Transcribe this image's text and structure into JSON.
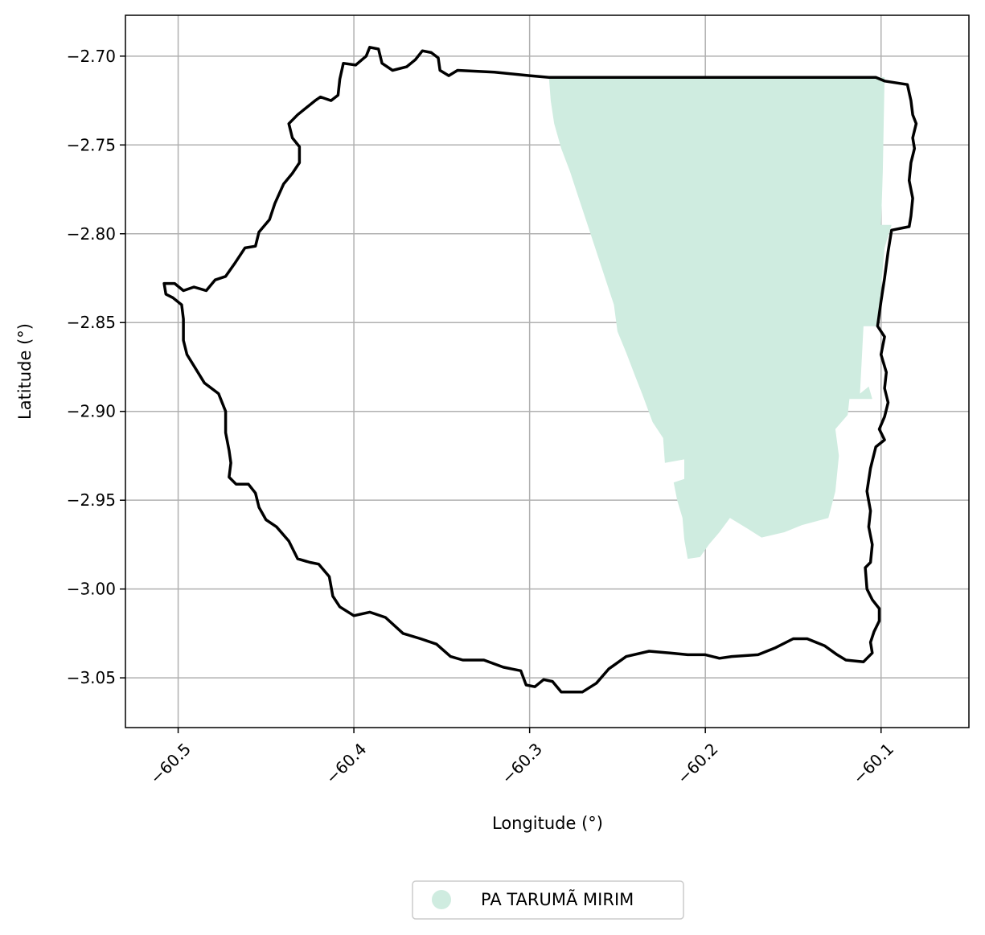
{
  "chart_data": {
    "type": "map",
    "xlabel": "Longitude (°)",
    "ylabel": "Latitude (°)",
    "xlim": [
      -60.53,
      -60.05
    ],
    "ylim": [
      -3.078,
      -2.677
    ],
    "x_ticks": [
      -60.5,
      -60.4,
      -60.3,
      -60.2,
      -60.1
    ],
    "y_ticks": [
      -2.7,
      -2.75,
      -2.8,
      -2.85,
      -2.9,
      -2.95,
      -3.0,
      -3.05
    ],
    "x_tick_labels": [
      "−60.5",
      "−60.4",
      "−60.3",
      "−60.2",
      "−60.1"
    ],
    "y_tick_labels": [
      "−2.70",
      "−2.75",
      "−2.80",
      "−2.85",
      "−2.90",
      "−2.95",
      "−3.00",
      "−3.05"
    ],
    "grid": true,
    "legend": {
      "placement": "below-center",
      "entries": [
        {
          "label": "PA TARUMÃ MIRIM",
          "color": "#cfece0"
        }
      ]
    },
    "colors": {
      "boundary": "#000000",
      "settlement_fill": "#cfece0",
      "grid": "#b0b0b0"
    },
    "boundary": [
      [
        -60.508,
        -2.828
      ],
      [
        -60.502,
        -2.828
      ],
      [
        -60.497,
        -2.832
      ],
      [
        -60.491,
        -2.83
      ],
      [
        -60.484,
        -2.832
      ],
      [
        -60.479,
        -2.826
      ],
      [
        -60.473,
        -2.824
      ],
      [
        -60.468,
        -2.817
      ],
      [
        -60.462,
        -2.808
      ],
      [
        -60.456,
        -2.807
      ],
      [
        -60.454,
        -2.799
      ],
      [
        -60.448,
        -2.792
      ],
      [
        -60.445,
        -2.783
      ],
      [
        -60.44,
        -2.772
      ],
      [
        -60.435,
        -2.766
      ],
      [
        -60.431,
        -2.76
      ],
      [
        -60.431,
        -2.751
      ],
      [
        -60.435,
        -2.746
      ],
      [
        -60.437,
        -2.738
      ],
      [
        -60.432,
        -2.733
      ],
      [
        -60.427,
        -2.729
      ],
      [
        -60.422,
        -2.725
      ],
      [
        -60.419,
        -2.723
      ],
      [
        -60.413,
        -2.725
      ],
      [
        -60.409,
        -2.722
      ],
      [
        -60.408,
        -2.713
      ],
      [
        -60.406,
        -2.704
      ],
      [
        -60.399,
        -2.705
      ],
      [
        -60.393,
        -2.7
      ],
      [
        -60.391,
        -2.695
      ],
      [
        -60.386,
        -2.696
      ],
      [
        -60.384,
        -2.704
      ],
      [
        -60.378,
        -2.708
      ],
      [
        -60.37,
        -2.706
      ],
      [
        -60.365,
        -2.702
      ],
      [
        -60.361,
        -2.697
      ],
      [
        -60.356,
        -2.698
      ],
      [
        -60.352,
        -2.701
      ],
      [
        -60.351,
        -2.708
      ],
      [
        -60.346,
        -2.711
      ],
      [
        -60.341,
        -2.708
      ],
      [
        -60.32,
        -2.709
      ],
      [
        -60.3,
        -2.711
      ],
      [
        -60.289,
        -2.712
      ],
      [
        -60.2,
        -2.712
      ],
      [
        -60.15,
        -2.712
      ],
      [
        -60.103,
        -2.712
      ],
      [
        -60.098,
        -2.714
      ],
      [
        -60.085,
        -2.716
      ],
      [
        -60.083,
        -2.725
      ],
      [
        -60.082,
        -2.733
      ],
      [
        -60.08,
        -2.738
      ],
      [
        -60.082,
        -2.746
      ],
      [
        -60.081,
        -2.752
      ],
      [
        -60.083,
        -2.76
      ],
      [
        -60.084,
        -2.77
      ],
      [
        -60.082,
        -2.78
      ],
      [
        -60.083,
        -2.79
      ],
      [
        -60.084,
        -2.796
      ],
      [
        -60.094,
        -2.798
      ],
      [
        -60.096,
        -2.81
      ],
      [
        -60.098,
        -2.825
      ],
      [
        -60.1,
        -2.838
      ],
      [
        -60.102,
        -2.852
      ],
      [
        -60.098,
        -2.858
      ],
      [
        -60.1,
        -2.868
      ],
      [
        -60.097,
        -2.878
      ],
      [
        -60.098,
        -2.887
      ],
      [
        -60.096,
        -2.895
      ],
      [
        -60.098,
        -2.903
      ],
      [
        -60.101,
        -2.91
      ],
      [
        -60.098,
        -2.916
      ],
      [
        -60.103,
        -2.92
      ],
      [
        -60.106,
        -2.932
      ],
      [
        -60.108,
        -2.945
      ],
      [
        -60.106,
        -2.956
      ],
      [
        -60.107,
        -2.965
      ],
      [
        -60.105,
        -2.975
      ],
      [
        -60.106,
        -2.985
      ],
      [
        -60.109,
        -2.988
      ],
      [
        -60.108,
        -3.0
      ],
      [
        -60.105,
        -3.006
      ],
      [
        -60.101,
        -3.011
      ],
      [
        -60.101,
        -3.018
      ],
      [
        -60.104,
        -3.024
      ],
      [
        -60.106,
        -3.03
      ],
      [
        -60.105,
        -3.036
      ],
      [
        -60.11,
        -3.041
      ],
      [
        -60.12,
        -3.04
      ],
      [
        -60.125,
        -3.037
      ],
      [
        -60.132,
        -3.032
      ],
      [
        -60.142,
        -3.028
      ],
      [
        -60.15,
        -3.028
      ],
      [
        -60.16,
        -3.033
      ],
      [
        -60.17,
        -3.037
      ],
      [
        -60.185,
        -3.038
      ],
      [
        -60.192,
        -3.039
      ],
      [
        -60.2,
        -3.037
      ],
      [
        -60.21,
        -3.037
      ],
      [
        -60.22,
        -3.036
      ],
      [
        -60.232,
        -3.035
      ],
      [
        -60.245,
        -3.038
      ],
      [
        -60.255,
        -3.045
      ],
      [
        -60.262,
        -3.053
      ],
      [
        -60.27,
        -3.058
      ],
      [
        -60.282,
        -3.058
      ],
      [
        -60.287,
        -3.052
      ],
      [
        -60.292,
        -3.051
      ],
      [
        -60.297,
        -3.055
      ],
      [
        -60.302,
        -3.054
      ],
      [
        -60.305,
        -3.046
      ],
      [
        -60.315,
        -3.044
      ],
      [
        -60.326,
        -3.04
      ],
      [
        -60.338,
        -3.04
      ],
      [
        -60.345,
        -3.038
      ],
      [
        -60.353,
        -3.031
      ],
      [
        -60.362,
        -3.028
      ],
      [
        -60.372,
        -3.025
      ],
      [
        -60.382,
        -3.016
      ],
      [
        -60.391,
        -3.013
      ],
      [
        -60.4,
        -3.015
      ],
      [
        -60.408,
        -3.01
      ],
      [
        -60.412,
        -3.004
      ],
      [
        -60.414,
        -2.993
      ],
      [
        -60.42,
        -2.986
      ],
      [
        -60.425,
        -2.985
      ],
      [
        -60.432,
        -2.983
      ],
      [
        -60.437,
        -2.973
      ],
      [
        -60.444,
        -2.965
      ],
      [
        -60.45,
        -2.961
      ],
      [
        -60.454,
        -2.954
      ],
      [
        -60.456,
        -2.946
      ],
      [
        -60.46,
        -2.941
      ],
      [
        -60.467,
        -2.941
      ],
      [
        -60.471,
        -2.937
      ],
      [
        -60.47,
        -2.929
      ],
      [
        -60.471,
        -2.922
      ],
      [
        -60.473,
        -2.912
      ],
      [
        -60.473,
        -2.9
      ],
      [
        -60.477,
        -2.89
      ],
      [
        -60.485,
        -2.884
      ],
      [
        -60.49,
        -2.876
      ],
      [
        -60.495,
        -2.868
      ],
      [
        -60.497,
        -2.86
      ],
      [
        -60.497,
        -2.848
      ],
      [
        -60.498,
        -2.84
      ],
      [
        -60.503,
        -2.836
      ],
      [
        -60.507,
        -2.834
      ],
      [
        -60.508,
        -2.828
      ]
    ],
    "settlement_polygon": [
      [
        -60.289,
        -2.712
      ],
      [
        -60.098,
        -2.712
      ],
      [
        -60.099,
        -2.765
      ],
      [
        -60.1,
        -2.795
      ],
      [
        -60.094,
        -2.795
      ],
      [
        -60.098,
        -2.808
      ],
      [
        -60.102,
        -2.852
      ],
      [
        -60.11,
        -2.852
      ],
      [
        -60.112,
        -2.89
      ],
      [
        -60.107,
        -2.886
      ],
      [
        -60.105,
        -2.893
      ],
      [
        -60.118,
        -2.893
      ],
      [
        -60.119,
        -2.902
      ],
      [
        -60.126,
        -2.91
      ],
      [
        -60.124,
        -2.925
      ],
      [
        -60.126,
        -2.945
      ],
      [
        -60.13,
        -2.96
      ],
      [
        -60.145,
        -2.964
      ],
      [
        -60.155,
        -2.968
      ],
      [
        -60.168,
        -2.971
      ],
      [
        -60.176,
        -2.966
      ],
      [
        -60.186,
        -2.96
      ],
      [
        -60.192,
        -2.968
      ],
      [
        -60.198,
        -2.975
      ],
      [
        -60.203,
        -2.982
      ],
      [
        -60.21,
        -2.983
      ],
      [
        -60.212,
        -2.972
      ],
      [
        -60.213,
        -2.96
      ],
      [
        -60.216,
        -2.95
      ],
      [
        -60.218,
        -2.94
      ],
      [
        -60.212,
        -2.938
      ],
      [
        -60.212,
        -2.927
      ],
      [
        -60.223,
        -2.929
      ],
      [
        -60.224,
        -2.915
      ],
      [
        -60.23,
        -2.906
      ],
      [
        -60.236,
        -2.89
      ],
      [
        -60.24,
        -2.88
      ],
      [
        -60.245,
        -2.867
      ],
      [
        -60.25,
        -2.855
      ],
      [
        -60.252,
        -2.84
      ],
      [
        -60.257,
        -2.825
      ],
      [
        -60.262,
        -2.81
      ],
      [
        -60.267,
        -2.795
      ],
      [
        -60.272,
        -2.78
      ],
      [
        -60.277,
        -2.765
      ],
      [
        -60.282,
        -2.752
      ],
      [
        -60.286,
        -2.738
      ],
      [
        -60.288,
        -2.725
      ],
      [
        -60.289,
        -2.712
      ]
    ]
  }
}
